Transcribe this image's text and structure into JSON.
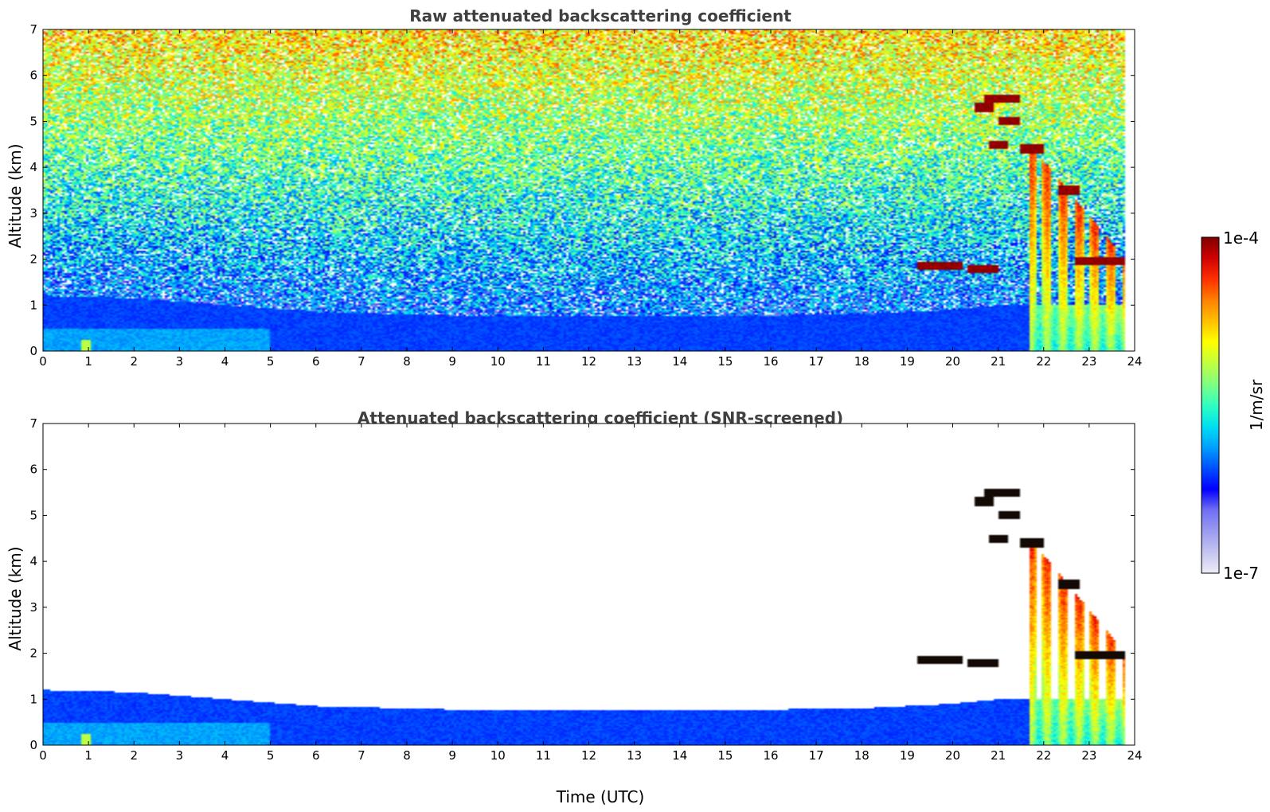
{
  "chart_data": [
    {
      "type": "heatmap",
      "title": "Raw attenuated backscattering coefficient",
      "xlabel": "",
      "ylabel": "Altitude (km)",
      "xlim": [
        0,
        24
      ],
      "ylim": [
        0,
        7
      ],
      "x_ticks": [
        "0",
        "1",
        "2",
        "3",
        "4",
        "5",
        "6",
        "7",
        "8",
        "9",
        "10",
        "11",
        "12",
        "13",
        "14",
        "15",
        "16",
        "17",
        "18",
        "19",
        "20",
        "21",
        "22",
        "23",
        "24"
      ],
      "y_ticks": [
        "0",
        "1",
        "2",
        "3",
        "4",
        "5",
        "6",
        "7"
      ],
      "grid": false,
      "screened": false,
      "features": {
        "boundary_layer_top_km": [
          [
            0,
            1.2
          ],
          [
            2,
            1.15
          ],
          [
            4,
            1.0
          ],
          [
            6,
            0.85
          ],
          [
            10,
            0.75
          ],
          [
            14,
            0.75
          ],
          [
            18,
            0.8
          ],
          [
            20,
            0.9
          ],
          [
            21,
            1.0
          ]
        ],
        "data_end_hour": 23.8,
        "cloud_layers": [
          {
            "x": [
              19.2,
              20.2
            ],
            "alt_km": 1.85
          },
          {
            "x": [
              20.3,
              21.0
            ],
            "alt_km": 1.78
          },
          {
            "x": [
              20.5,
              20.9
            ],
            "alt_km": 5.3
          },
          {
            "x": [
              20.7,
              21.5
            ],
            "alt_km": 5.5
          },
          {
            "x": [
              21.0,
              21.5
            ],
            "alt_km": 5.0
          },
          {
            "x": [
              20.8,
              21.2
            ],
            "alt_km": 4.5
          },
          {
            "x": [
              21.5,
              22.0
            ],
            "alt_km": 4.4
          },
          {
            "x": [
              22.7,
              23.8
            ],
            "alt_km": 1.95
          },
          {
            "x": [
              22.3,
              22.8
            ],
            "alt_km": 3.5
          }
        ],
        "precipitation_fallstreaks": {
          "x": [
            21.7,
            23.8
          ],
          "top_km": [
            4.5,
            2.0
          ]
        }
      }
    },
    {
      "type": "heatmap",
      "title": "Attenuated backscattering coefficient (SNR-screened)",
      "xlabel": "Time (UTC)",
      "ylabel": "Altitude (km)",
      "xlim": [
        0,
        24
      ],
      "ylim": [
        0,
        7
      ],
      "x_ticks": [
        "0",
        "1",
        "2",
        "3",
        "4",
        "5",
        "6",
        "7",
        "8",
        "9",
        "10",
        "11",
        "12",
        "13",
        "14",
        "15",
        "16",
        "17",
        "18",
        "19",
        "20",
        "21",
        "22",
        "23",
        "24"
      ],
      "y_ticks": [
        "0",
        "1",
        "2",
        "3",
        "4",
        "5",
        "6",
        "7"
      ],
      "grid": false,
      "screened": true
    }
  ],
  "colorbar": {
    "colormap": "jet",
    "min_label": "1e-7",
    "max_label": "1e-4",
    "label": "1/m/sr",
    "scale": "log",
    "colors": [
      "#ecebf6",
      "#c5c4ef",
      "#9b9bf0",
      "#6f6ff3",
      "#0000ff",
      "#0050ff",
      "#00a0ff",
      "#00e0f0",
      "#30ffc0",
      "#80ff80",
      "#c0ff40",
      "#ffff00",
      "#ffc000",
      "#ff8000",
      "#ff3000",
      "#d00000",
      "#7f0000"
    ]
  }
}
